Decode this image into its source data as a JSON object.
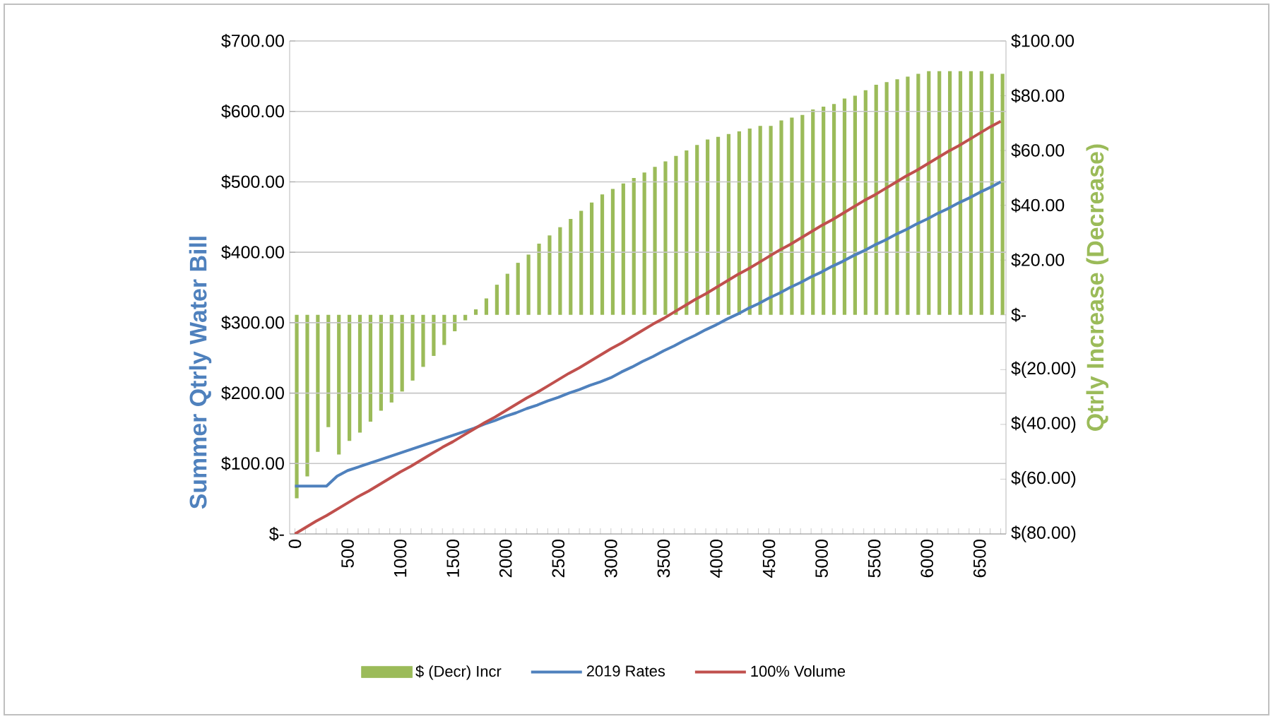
{
  "chart_data": {
    "type": "line",
    "categories": [
      "0",
      null,
      null,
      null,
      null,
      "500",
      null,
      null,
      null,
      null,
      "1000",
      null,
      null,
      null,
      null,
      "1500",
      null,
      null,
      null,
      null,
      "2000",
      null,
      null,
      null,
      null,
      "2500",
      null,
      null,
      null,
      null,
      "3000",
      null,
      null,
      null,
      null,
      "3500",
      null,
      null,
      null,
      null,
      "4000",
      null,
      null,
      null,
      null,
      "4500",
      null,
      null,
      null,
      null,
      "5000",
      null,
      null,
      null,
      null,
      "5500",
      null,
      null,
      null,
      null,
      "6000",
      null,
      null,
      null,
      null,
      "6500",
      null,
      null
    ],
    "series": [
      {
        "name": "$ (Decr) Incr",
        "type": "bar",
        "axis": "y2",
        "color": "#9bbb59",
        "values": [
          -67,
          -59,
          -50,
          -41,
          -51,
          -46,
          -43,
          -39,
          -35,
          -32,
          -28,
          -24,
          -19,
          -15,
          -11,
          -6,
          -2,
          2,
          6,
          11,
          15,
          19,
          22,
          26,
          29,
          32,
          35,
          38,
          41,
          44,
          46,
          48,
          50,
          52,
          54,
          56,
          58,
          60,
          62,
          64,
          65,
          66,
          67,
          68,
          69,
          69,
          71,
          72,
          73,
          75,
          76,
          77,
          79,
          80,
          82,
          84,
          85,
          86,
          87,
          88,
          89,
          89,
          89,
          89,
          89,
          89,
          88,
          88
        ]
      },
      {
        "name": "2019 Rates",
        "color": "#4f81bd",
        "values": [
          68,
          68,
          68,
          68,
          82,
          90,
          95,
          100,
          105,
          110,
          115,
          120,
          125,
          130,
          135,
          140,
          145,
          150,
          156,
          161,
          167,
          172,
          178,
          183,
          189,
          194,
          200,
          205,
          211,
          216,
          222,
          230,
          237,
          245,
          252,
          260,
          267,
          275,
          282,
          290,
          297,
          305,
          312,
          320,
          327,
          335,
          342,
          350,
          357,
          365,
          372,
          380,
          387,
          395,
          402,
          410,
          417,
          425,
          432,
          440,
          447,
          455,
          462,
          470,
          477,
          485,
          492,
          500
        ]
      },
      {
        "name": "100% Volume",
        "color": "#c0504d",
        "values": [
          0,
          9,
          18,
          26,
          35,
          44,
          53,
          61,
          70,
          79,
          88,
          96,
          105,
          114,
          123,
          131,
          140,
          149,
          158,
          166,
          175,
          184,
          193,
          201,
          210,
          219,
          228,
          236,
          245,
          254,
          263,
          271,
          280,
          289,
          298,
          306,
          315,
          324,
          333,
          341,
          350,
          359,
          368,
          376,
          385,
          394,
          403,
          411,
          420,
          429,
          438,
          446,
          455,
          464,
          473,
          481,
          490,
          499,
          508,
          516,
          525,
          534,
          543,
          551,
          560,
          569,
          578,
          586
        ]
      }
    ],
    "ylabel": "Summer Qtrly  Water Bill",
    "y2label": "Qtrly Increase (Decrease)",
    "ylim": [
      0,
      700
    ],
    "yticks": [
      {
        "value": 0,
        "label": "$-"
      },
      {
        "value": 100,
        "label": "$100.00"
      },
      {
        "value": 200,
        "label": "$200.00"
      },
      {
        "value": 300,
        "label": "$300.00"
      },
      {
        "value": 400,
        "label": "$400.00"
      },
      {
        "value": 500,
        "label": "$500.00"
      },
      {
        "value": 600,
        "label": "$600.00"
      },
      {
        "value": 700,
        "label": "$700.00"
      }
    ],
    "y2lim": [
      -80,
      100
    ],
    "y2ticks": [
      {
        "value": -80,
        "label": "$(80.00)"
      },
      {
        "value": -60,
        "label": "$(60.00)"
      },
      {
        "value": -40,
        "label": "$(40.00)"
      },
      {
        "value": -20,
        "label": "$(20.00)"
      },
      {
        "value": 0,
        "label": "$-"
      },
      {
        "value": 20,
        "label": "$20.00"
      },
      {
        "value": 40,
        "label": "$40.00"
      },
      {
        "value": 60,
        "label": "$60.00"
      },
      {
        "value": 80,
        "label": "$80.00"
      },
      {
        "value": 100,
        "label": "$100.00"
      }
    ],
    "grid": "y",
    "legend": "bottom"
  }
}
